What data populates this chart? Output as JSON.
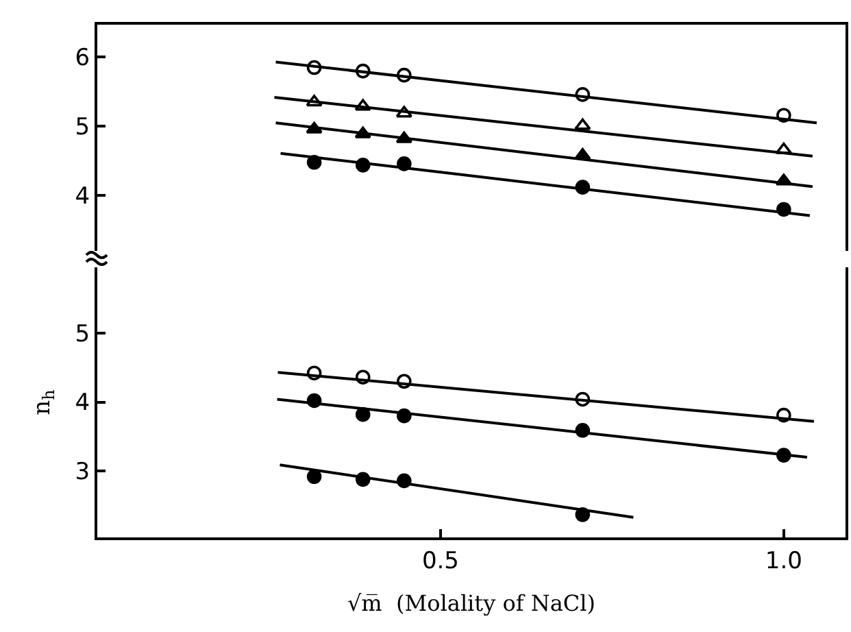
{
  "chart_data": [
    {
      "type": "scatter",
      "x": [
        0.316,
        0.387,
        0.447,
        0.707,
        1.0
      ],
      "xlim": [
        0,
        1.09
      ],
      "ylim": [
        3.2,
        6.47
      ],
      "yticks": [
        4,
        5,
        6
      ],
      "tick_labels": "y",
      "grid": false,
      "series": [
        {
          "color": "#ffffff",
          "marker": "circle",
          "values": [
            5.85,
            5.8,
            5.74,
            5.46,
            5.16
          ]
        },
        {
          "color": "#ffffff",
          "marker": "triangle",
          "values": [
            5.35,
            5.29,
            5.19,
            5.01,
            4.66
          ]
        },
        {
          "color": "#000000",
          "marker": "triangle",
          "values": [
            4.96,
            4.89,
            4.82,
            4.58,
            4.21
          ]
        },
        {
          "color": "#000000",
          "marker": "circle",
          "values": [
            4.48,
            4.44,
            4.46,
            4.12,
            3.8
          ]
        },
        {
          "type": "line",
          "color": "#000000",
          "marker": "none",
          "x": [
            0.26,
            1.048
          ],
          "values": [
            5.93,
            5.05
          ]
        },
        {
          "type": "line",
          "color": "#000000",
          "marker": "none",
          "x": [
            0.258,
            1.042
          ],
          "values": [
            5.42,
            4.57
          ]
        },
        {
          "type": "line",
          "color": "#000000",
          "marker": "none",
          "x": [
            0.26,
            1.042
          ],
          "values": [
            5.05,
            4.13
          ]
        },
        {
          "type": "line",
          "color": "#000000",
          "marker": "none",
          "x": [
            0.267,
            1.038
          ],
          "values": [
            4.61,
            3.71
          ]
        }
      ]
    },
    {
      "type": "scatter",
      "x": [
        0.316,
        0.387,
        0.447,
        0.707,
        1.0
      ],
      "xlim": [
        0,
        1.09
      ],
      "xticks": [
        {
          "value": 0.5,
          "label": "0.5"
        },
        {
          "value": 1.0,
          "label": "1.0"
        }
      ],
      "ylim": [
        2.04,
        5.95
      ],
      "yticks": [
        3,
        4,
        5
      ],
      "xlabel": "√m̅  (Molality of NaCl)",
      "ylabel": "n$_{h}$",
      "grid": false,
      "series": [
        {
          "color": "#ffffff",
          "marker": "circle",
          "values": [
            4.42,
            4.36,
            4.3,
            4.04,
            3.81
          ]
        },
        {
          "color": "#000000",
          "marker": "circle",
          "values": [
            4.02,
            3.82,
            3.8,
            3.59,
            3.23
          ]
        },
        {
          "color": "#000000",
          "marker": "circle",
          "x": [
            0.316,
            0.387,
            0.447,
            0.707
          ],
          "values": [
            2.92,
            2.88,
            2.86,
            2.37
          ]
        },
        {
          "type": "line",
          "color": "#000000",
          "marker": "none",
          "x": [
            0.263,
            1.044
          ],
          "values": [
            4.43,
            3.72
          ]
        },
        {
          "type": "line",
          "color": "#000000",
          "marker": "none",
          "x": [
            0.262,
            1.034
          ],
          "values": [
            4.04,
            3.2
          ]
        },
        {
          "type": "line",
          "color": "#000000",
          "marker": "none",
          "x": [
            0.266,
            0.781
          ],
          "values": [
            3.09,
            2.33
          ]
        }
      ]
    }
  ]
}
